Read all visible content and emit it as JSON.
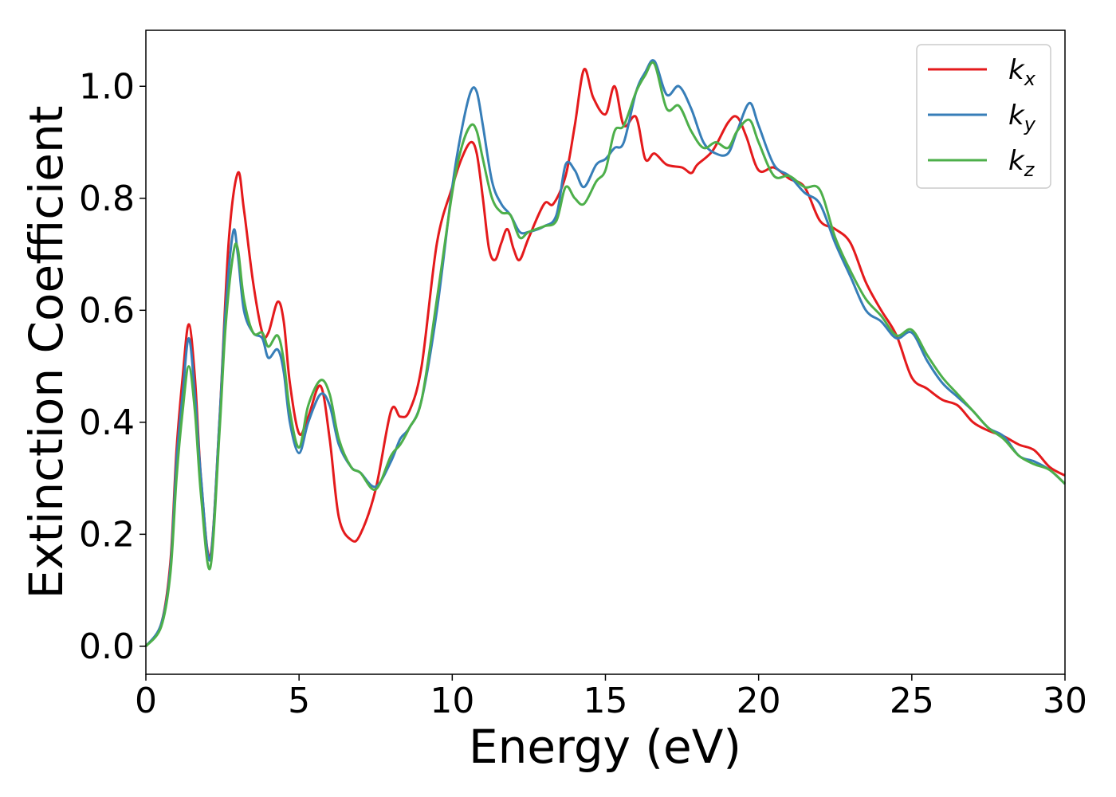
{
  "chart_data": {
    "type": "line",
    "title": "",
    "xlabel": "Energy (eV)",
    "ylabel": "Extinction Coefficient",
    "xlim": [
      0,
      30
    ],
    "ylim": [
      -0.05,
      1.1
    ],
    "xticks": [
      0,
      5,
      10,
      15,
      20,
      25,
      30
    ],
    "yticks": [
      0.0,
      0.2,
      0.4,
      0.6,
      0.8,
      1.0
    ],
    "xtick_labels": [
      "0",
      "5",
      "10",
      "15",
      "20",
      "25",
      "30"
    ],
    "ytick_labels": [
      "0.0",
      "0.2",
      "0.4",
      "0.6",
      "0.8",
      "1.0"
    ],
    "grid": false,
    "legend_position": "top-right",
    "series": [
      {
        "name": "k_x",
        "label_main": "k",
        "label_sub": "x",
        "color": "#e41a1c",
        "x": [
          0,
          0.5,
          0.8,
          1.0,
          1.2,
          1.4,
          1.6,
          1.8,
          2.1,
          2.4,
          2.7,
          3.0,
          3.2,
          3.5,
          3.8,
          4.0,
          4.3,
          4.5,
          4.7,
          5.0,
          5.3,
          5.7,
          6.0,
          6.3,
          6.7,
          7.0,
          7.5,
          8.0,
          8.3,
          8.6,
          9.0,
          9.5,
          10.0,
          10.3,
          10.6,
          10.8,
          11.0,
          11.2,
          11.4,
          11.6,
          11.8,
          12.0,
          12.2,
          12.5,
          13.0,
          13.3,
          13.7,
          14.0,
          14.3,
          14.6,
          15.0,
          15.3,
          15.6,
          16.0,
          16.3,
          16.6,
          17.0,
          17.5,
          17.8,
          18.0,
          18.5,
          19.0,
          19.3,
          19.6,
          20.0,
          20.5,
          21.0,
          21.5,
          22.0,
          22.5,
          23.0,
          23.5,
          24.0,
          24.5,
          25.0,
          25.5,
          26.0,
          26.5,
          27.0,
          27.5,
          28.0,
          28.5,
          29.0,
          29.5,
          30.0
        ],
        "y": [
          0.0,
          0.04,
          0.15,
          0.35,
          0.48,
          0.575,
          0.48,
          0.3,
          0.16,
          0.4,
          0.72,
          0.845,
          0.78,
          0.65,
          0.56,
          0.56,
          0.615,
          0.58,
          0.47,
          0.38,
          0.41,
          0.465,
          0.37,
          0.23,
          0.19,
          0.2,
          0.28,
          0.42,
          0.41,
          0.42,
          0.5,
          0.72,
          0.82,
          0.87,
          0.9,
          0.88,
          0.8,
          0.71,
          0.69,
          0.72,
          0.745,
          0.71,
          0.69,
          0.73,
          0.79,
          0.79,
          0.84,
          0.93,
          1.03,
          0.98,
          0.95,
          1.0,
          0.93,
          0.945,
          0.87,
          0.88,
          0.86,
          0.855,
          0.845,
          0.86,
          0.885,
          0.935,
          0.945,
          0.91,
          0.85,
          0.855,
          0.835,
          0.82,
          0.76,
          0.745,
          0.72,
          0.65,
          0.6,
          0.555,
          0.48,
          0.46,
          0.44,
          0.43,
          0.4,
          0.385,
          0.375,
          0.36,
          0.35,
          0.32,
          0.305
        ]
      },
      {
        "name": "k_y",
        "label_main": "k",
        "label_sub": "y",
        "color": "#377eb8",
        "x": [
          0,
          0.5,
          0.8,
          1.0,
          1.2,
          1.4,
          1.6,
          1.8,
          2.1,
          2.4,
          2.6,
          2.85,
          3.0,
          3.2,
          3.5,
          3.8,
          4.0,
          4.3,
          4.5,
          4.7,
          5.0,
          5.3,
          5.7,
          6.0,
          6.3,
          6.7,
          7.0,
          7.5,
          8.0,
          8.3,
          8.6,
          9.0,
          9.5,
          10.0,
          10.3,
          10.6,
          10.8,
          11.0,
          11.3,
          11.6,
          11.9,
          12.2,
          12.5,
          13.0,
          13.4,
          13.7,
          14.0,
          14.3,
          14.7,
          15.0,
          15.3,
          15.6,
          16.0,
          16.3,
          16.6,
          17.0,
          17.4,
          17.8,
          18.2,
          18.6,
          19.0,
          19.3,
          19.7,
          20.0,
          20.5,
          21.0,
          21.5,
          22.0,
          22.5,
          23.0,
          23.5,
          24.0,
          24.5,
          25.0,
          25.5,
          26.0,
          26.5,
          27.0,
          27.5,
          28.0,
          28.5,
          29.0,
          29.5,
          30.0
        ],
        "y": [
          0.0,
          0.04,
          0.14,
          0.33,
          0.45,
          0.55,
          0.45,
          0.3,
          0.155,
          0.4,
          0.6,
          0.74,
          0.7,
          0.6,
          0.56,
          0.55,
          0.515,
          0.53,
          0.49,
          0.4,
          0.345,
          0.4,
          0.45,
          0.43,
          0.36,
          0.32,
          0.31,
          0.285,
          0.33,
          0.37,
          0.39,
          0.44,
          0.6,
          0.82,
          0.92,
          0.99,
          0.99,
          0.93,
          0.83,
          0.79,
          0.77,
          0.74,
          0.74,
          0.75,
          0.77,
          0.86,
          0.85,
          0.82,
          0.86,
          0.87,
          0.89,
          0.9,
          0.99,
          1.025,
          1.045,
          0.985,
          1.0,
          0.96,
          0.9,
          0.88,
          0.88,
          0.92,
          0.97,
          0.93,
          0.86,
          0.84,
          0.81,
          0.79,
          0.72,
          0.66,
          0.6,
          0.58,
          0.55,
          0.56,
          0.51,
          0.47,
          0.445,
          0.42,
          0.39,
          0.375,
          0.34,
          0.33,
          0.315,
          0.29
        ]
      },
      {
        "name": "k_z",
        "label_main": "k",
        "label_sub": "z",
        "color": "#4daf4a",
        "x": [
          0,
          0.5,
          0.8,
          1.0,
          1.2,
          1.4,
          1.6,
          1.8,
          2.1,
          2.4,
          2.6,
          2.85,
          3.0,
          3.2,
          3.5,
          3.8,
          4.0,
          4.3,
          4.5,
          4.7,
          5.0,
          5.3,
          5.7,
          6.0,
          6.3,
          6.7,
          7.0,
          7.5,
          8.0,
          8.3,
          8.6,
          9.0,
          9.5,
          10.0,
          10.3,
          10.6,
          10.8,
          11.0,
          11.3,
          11.6,
          11.9,
          12.2,
          12.5,
          13.0,
          13.4,
          13.7,
          14.0,
          14.3,
          14.7,
          15.0,
          15.3,
          15.6,
          16.0,
          16.3,
          16.6,
          17.0,
          17.4,
          17.8,
          18.2,
          18.6,
          19.0,
          19.3,
          19.7,
          20.0,
          20.5,
          21.0,
          21.5,
          22.0,
          22.5,
          23.0,
          23.5,
          24.0,
          24.5,
          25.0,
          25.5,
          26.0,
          26.5,
          27.0,
          27.5,
          28.0,
          28.5,
          29.0,
          29.5,
          30.0
        ],
        "y": [
          0.0,
          0.035,
          0.13,
          0.3,
          0.42,
          0.5,
          0.42,
          0.27,
          0.14,
          0.38,
          0.57,
          0.7,
          0.71,
          0.62,
          0.56,
          0.56,
          0.535,
          0.555,
          0.51,
          0.42,
          0.355,
          0.43,
          0.475,
          0.45,
          0.37,
          0.32,
          0.31,
          0.28,
          0.34,
          0.36,
          0.39,
          0.44,
          0.62,
          0.81,
          0.89,
          0.93,
          0.92,
          0.87,
          0.8,
          0.775,
          0.77,
          0.73,
          0.74,
          0.75,
          0.76,
          0.82,
          0.8,
          0.79,
          0.83,
          0.85,
          0.92,
          0.93,
          0.99,
          1.02,
          1.04,
          0.96,
          0.965,
          0.92,
          0.89,
          0.9,
          0.89,
          0.92,
          0.94,
          0.9,
          0.84,
          0.84,
          0.82,
          0.815,
          0.73,
          0.67,
          0.62,
          0.59,
          0.555,
          0.565,
          0.52,
          0.48,
          0.45,
          0.42,
          0.39,
          0.37,
          0.34,
          0.325,
          0.315,
          0.29
        ]
      }
    ]
  }
}
